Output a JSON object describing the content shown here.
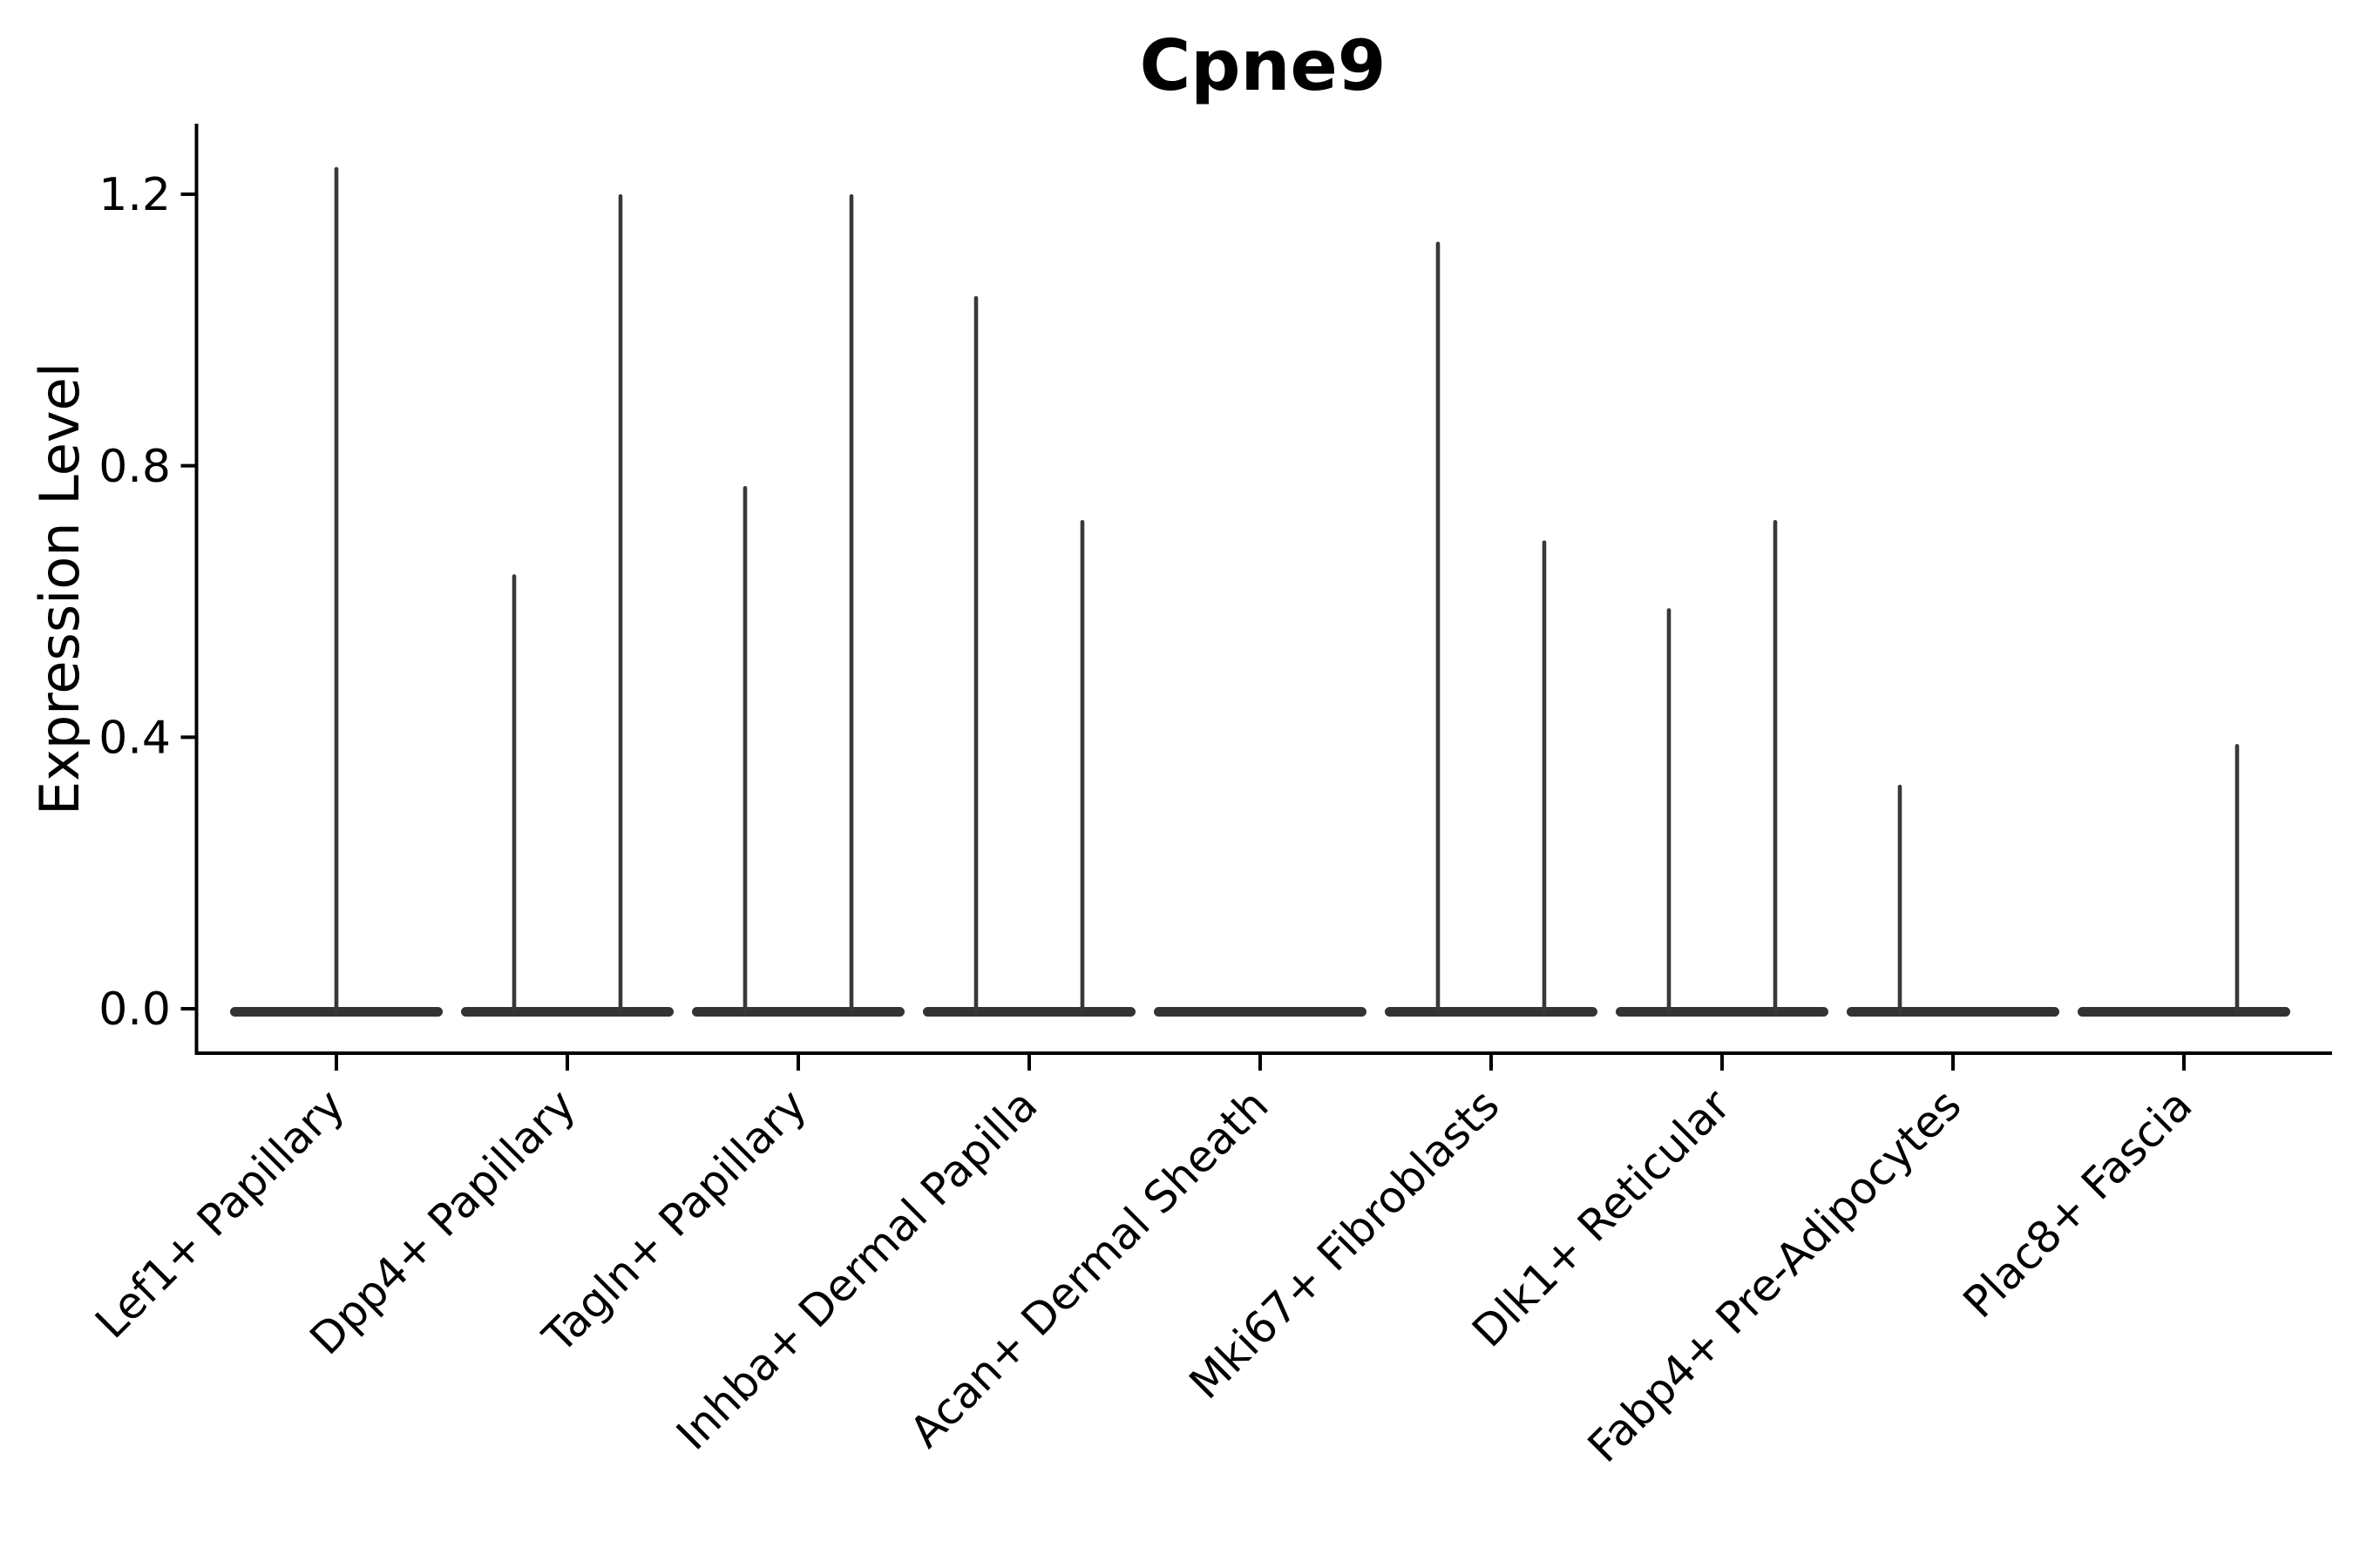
{
  "page": {
    "background": "#ffffff"
  },
  "chart_data": {
    "type": "violin",
    "title": "Cpne9",
    "ylabel": "Expression Level",
    "xlabel": "",
    "ytick_labels": [
      "0.0",
      "0.4",
      "0.8",
      "1.2"
    ],
    "ytick_values": [
      0.0,
      0.4,
      0.8,
      1.2
    ],
    "ylim": [
      -0.065,
      1.3
    ],
    "grid": false,
    "legend": "none",
    "description": "Violin plot of Cpne9 expression; each cluster shows a wide flat density bar at 0 with hair-thin tails reaching the maximum expression value. Some clusters contain two side-by-side violins (left/right), some a single centered one, some none.",
    "categories": [
      {
        "label": "Lef1+ Papillary",
        "violins": [
          {
            "position": "center",
            "max": 1.24
          }
        ]
      },
      {
        "label": "Dpp4+ Papillary",
        "violins": [
          {
            "position": "left",
            "max": 0.64
          },
          {
            "position": "right",
            "max": 1.2
          }
        ]
      },
      {
        "label": "Tagln+ Papillary",
        "violins": [
          {
            "position": "left",
            "max": 0.77
          },
          {
            "position": "right",
            "max": 1.2
          }
        ]
      },
      {
        "label": "Inhba+ Dermal Papilla",
        "violins": [
          {
            "position": "left",
            "max": 1.05
          },
          {
            "position": "right",
            "max": 0.72
          }
        ]
      },
      {
        "label": "Acan+ Dermal Sheath",
        "violins": []
      },
      {
        "label": "Mki67+ Fibroblasts",
        "violins": [
          {
            "position": "left",
            "max": 1.13
          },
          {
            "position": "right",
            "max": 0.69
          }
        ]
      },
      {
        "label": "Dlk1+ Reticular",
        "violins": [
          {
            "position": "left",
            "max": 0.59
          },
          {
            "position": "right",
            "max": 0.72
          }
        ]
      },
      {
        "label": "Fabp4+ Pre-Adipocytes",
        "violins": [
          {
            "position": "left",
            "max": 0.33
          }
        ]
      },
      {
        "label": "Plac8+ Fascia",
        "violins": [
          {
            "position": "right",
            "max": 0.39
          }
        ]
      }
    ],
    "colors": {
      "violin_fill": "#333333",
      "spike_fill": "#383838",
      "axis": "#000000",
      "text": "#000000",
      "background": "#ffffff"
    }
  }
}
